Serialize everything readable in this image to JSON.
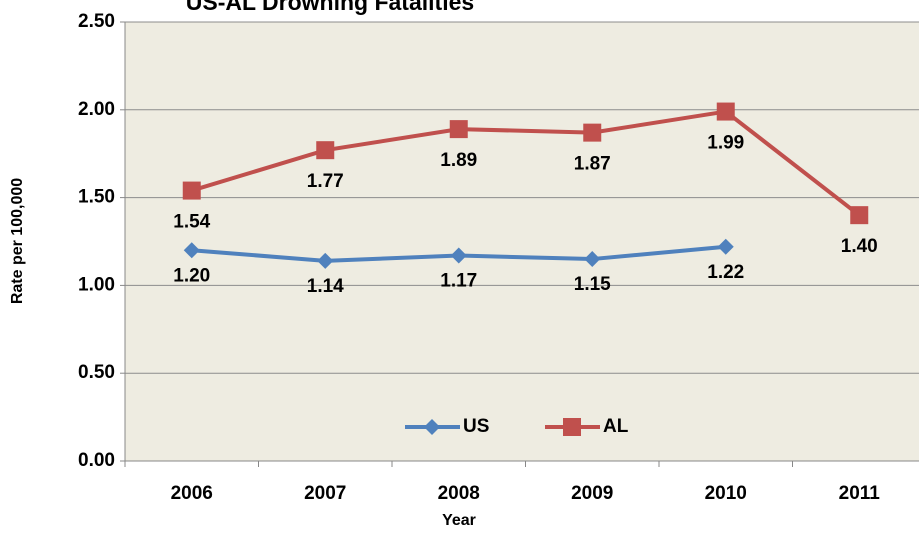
{
  "chart_data": {
    "type": "line",
    "title": "US-AL Drowning Fatalities",
    "x_label": "Year",
    "y_label": "Rate per 100,000",
    "categories": [
      "2006",
      "2007",
      "2008",
      "2009",
      "2010",
      "2011"
    ],
    "series": [
      {
        "name": "US",
        "color": "#4f81bd",
        "marker": "diamond",
        "values": [
          1.2,
          1.14,
          1.17,
          1.15,
          1.22,
          null
        ],
        "value_labels": [
          "1.20",
          "1.14",
          "1.17",
          "1.15",
          "1.22",
          null
        ]
      },
      {
        "name": "AL",
        "color": "#c0504d",
        "marker": "square",
        "values": [
          1.54,
          1.77,
          1.89,
          1.87,
          1.99,
          1.4
        ],
        "value_labels": [
          "1.54",
          "1.77",
          "1.89",
          "1.87",
          "1.99",
          "1.40"
        ]
      }
    ],
    "ylim": [
      0,
      2.5
    ],
    "yticks": [
      {
        "value": 0,
        "label": "0.00"
      },
      {
        "value": 0.5,
        "label": "0.50"
      },
      {
        "value": 1,
        "label": "1.00"
      },
      {
        "value": 1.5,
        "label": "1.50"
      },
      {
        "value": 2,
        "label": "2.00"
      },
      {
        "value": 2.5,
        "label": "2.50"
      }
    ],
    "grid": true,
    "legend": "bottom"
  }
}
